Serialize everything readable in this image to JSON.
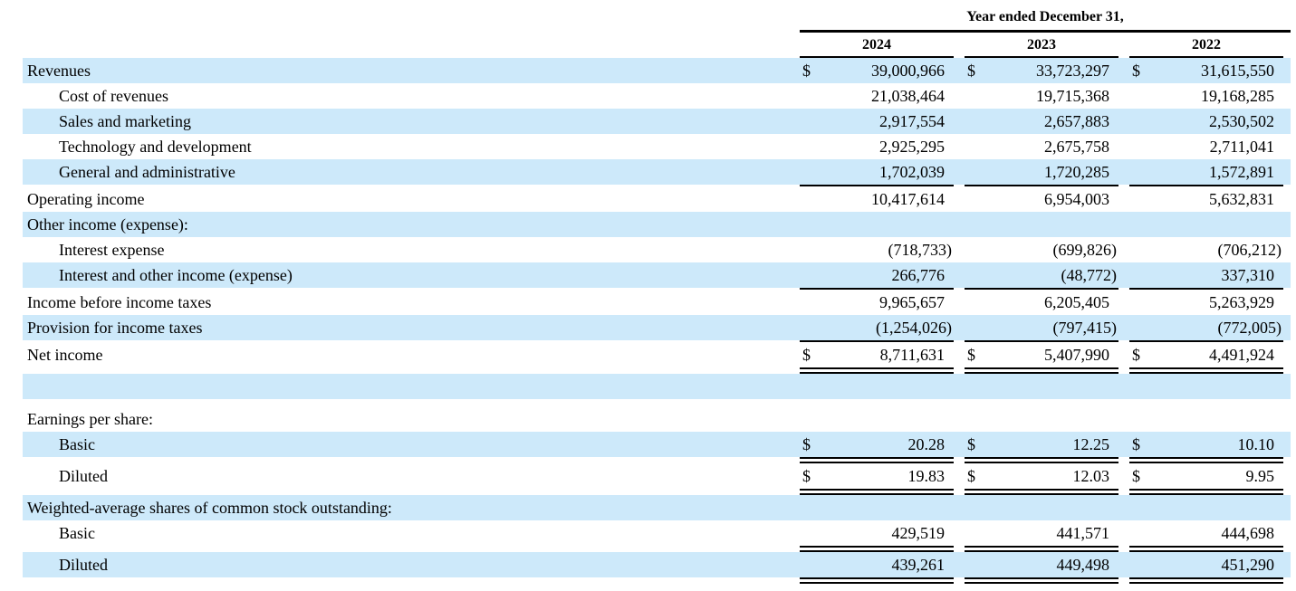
{
  "colors": {
    "row_highlight": "#cde9fa",
    "rule": "#000000",
    "text": "#000000"
  },
  "table": {
    "currency_symbol": "$",
    "header": {
      "period_label": "Year ended December 31,",
      "years": [
        "2024",
        "2023",
        "2022"
      ]
    },
    "rows": [
      {
        "type": "data",
        "label": "Revenues",
        "indent": 0,
        "shaded": true,
        "dollar": true,
        "values": [
          "39,000,966",
          "33,723,297",
          "31,615,550"
        ],
        "underline": "none"
      },
      {
        "type": "data",
        "label": "Cost of revenues",
        "indent": 1,
        "shaded": false,
        "dollar": false,
        "values": [
          "21,038,464",
          "19,715,368",
          "19,168,285"
        ],
        "underline": "none"
      },
      {
        "type": "data",
        "label": "Sales and marketing",
        "indent": 1,
        "shaded": true,
        "dollar": false,
        "values": [
          "2,917,554",
          "2,657,883",
          "2,530,502"
        ],
        "underline": "none"
      },
      {
        "type": "data",
        "label": "Technology and development",
        "indent": 1,
        "shaded": false,
        "dollar": false,
        "values": [
          "2,925,295",
          "2,675,758",
          "2,711,041"
        ],
        "underline": "none"
      },
      {
        "type": "data",
        "label": "General and administrative",
        "indent": 1,
        "shaded": true,
        "dollar": false,
        "values": [
          "1,702,039",
          "1,720,285",
          "1,572,891"
        ],
        "underline": "single"
      },
      {
        "type": "data",
        "label": "Operating income",
        "indent": 0,
        "shaded": false,
        "dollar": false,
        "values": [
          "10,417,614",
          "6,954,003",
          "5,632,831"
        ],
        "underline": "none"
      },
      {
        "type": "section",
        "label": "Other income (expense):",
        "indent": 0,
        "shaded": true
      },
      {
        "type": "data",
        "label": "Interest expense",
        "indent": 1,
        "shaded": false,
        "dollar": false,
        "values": [
          "(718,733)",
          "(699,826)",
          "(706,212)"
        ],
        "underline": "none"
      },
      {
        "type": "data",
        "label": "Interest and other income (expense)",
        "indent": 1,
        "shaded": true,
        "dollar": false,
        "values": [
          "266,776",
          "(48,772)",
          "337,310"
        ],
        "underline": "single"
      },
      {
        "type": "data",
        "label": "Income before income taxes",
        "indent": 0,
        "shaded": false,
        "dollar": false,
        "values": [
          "9,965,657",
          "6,205,405",
          "5,263,929"
        ],
        "underline": "none"
      },
      {
        "type": "data",
        "label": "Provision for income taxes",
        "indent": 0,
        "shaded": true,
        "dollar": false,
        "values": [
          "(1,254,026)",
          "(797,415)",
          "(772,005)"
        ],
        "underline": "single"
      },
      {
        "type": "data",
        "label": "Net income",
        "indent": 0,
        "shaded": false,
        "dollar": true,
        "values": [
          "8,711,631",
          "5,407,990",
          "4,491,924"
        ],
        "underline": "double"
      },
      {
        "type": "spacer",
        "shaded": true,
        "size": "large"
      },
      {
        "type": "spacer",
        "shaded": false,
        "size": "small"
      },
      {
        "type": "section",
        "label": "Earnings per share:",
        "indent": 0,
        "shaded": false
      },
      {
        "type": "data",
        "label": "Basic",
        "indent": 1,
        "shaded": true,
        "dollar": true,
        "values": [
          "20.28",
          "12.25",
          "10.10"
        ],
        "underline": "double"
      },
      {
        "type": "data",
        "label": "Diluted",
        "indent": 1,
        "shaded": false,
        "dollar": true,
        "values": [
          "19.83",
          "12.03",
          "9.95"
        ],
        "underline": "double"
      },
      {
        "type": "section",
        "label": "Weighted-average shares of common stock outstanding:",
        "indent": 0,
        "shaded": true
      },
      {
        "type": "data",
        "label": "Basic",
        "indent": 1,
        "shaded": false,
        "dollar": false,
        "values": [
          "429,519",
          "441,571",
          "444,698"
        ],
        "underline": "double"
      },
      {
        "type": "data",
        "label": "Diluted",
        "indent": 1,
        "shaded": true,
        "dollar": false,
        "values": [
          "439,261",
          "449,498",
          "451,290"
        ],
        "underline": "double"
      }
    ]
  }
}
